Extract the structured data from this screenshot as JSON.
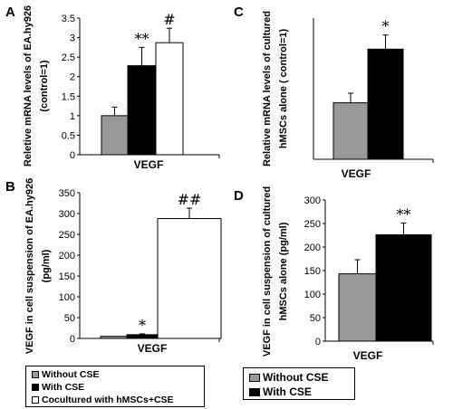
{
  "colors": {
    "without_cse": "#999999",
    "with_cse": "#000000",
    "cocultured": "#ffffff",
    "axis": "#000000"
  },
  "legend_left": {
    "items": [
      {
        "label": "Without CSE",
        "color": "#999999"
      },
      {
        "label": "With CSE",
        "color": "#000000"
      },
      {
        "label": "Cocultured with hMSCs+CSE",
        "color": "#ffffff"
      }
    ]
  },
  "legend_right": {
    "items": [
      {
        "label": "Without CSE",
        "color": "#999999"
      },
      {
        "label": "With CSE",
        "color": "#000000"
      }
    ]
  },
  "chart_data": [
    {
      "panel": "A",
      "type": "bar",
      "categories": [
        "VEGF"
      ],
      "xlabel": "VEGF",
      "ylabel": [
        "Reletive mRNA levels of EA.hy926",
        "(control=1)"
      ],
      "ylim": [
        0,
        3.5
      ],
      "yticks": [
        0,
        0.5,
        1,
        1.5,
        2,
        2.5,
        3,
        3.5
      ],
      "tick_labels": [
        "0",
        "0.5",
        "1",
        "1.5",
        "2",
        "2.5",
        "3",
        "3.5"
      ],
      "series": [
        {
          "name": "Without CSE",
          "values": [
            1.0
          ],
          "error": [
            0.22
          ],
          "annotation": ""
        },
        {
          "name": "With CSE",
          "values": [
            2.28
          ],
          "error": [
            0.47
          ],
          "annotation": "**"
        },
        {
          "name": "Cocultured with hMSCs+CSE",
          "values": [
            2.87
          ],
          "error": [
            0.37
          ],
          "annotation": "#"
        }
      ]
    },
    {
      "panel": "B",
      "type": "bar",
      "categories": [
        "VEGF"
      ],
      "xlabel": "VEGF",
      "ylabel": [
        "VEGF in cell suspension of EA.hy926",
        "(pg/ml)"
      ],
      "ylim": [
        0,
        350
      ],
      "yticks": [
        0,
        50,
        100,
        150,
        200,
        250,
        300,
        350
      ],
      "tick_labels": [
        "0",
        "50",
        "100",
        "150",
        "200",
        "250",
        "300",
        "350"
      ],
      "series": [
        {
          "name": "Without CSE",
          "values": [
            5
          ],
          "error": [
            0
          ],
          "annotation": ""
        },
        {
          "name": "With CSE",
          "values": [
            9
          ],
          "error": [
            2
          ],
          "annotation": "*"
        },
        {
          "name": "Cocultured with hMSCs+CSE",
          "values": [
            288
          ],
          "error": [
            25
          ],
          "annotation": "##"
        }
      ]
    },
    {
      "panel": "C",
      "type": "bar",
      "categories": [
        "VEGF"
      ],
      "xlabel": "VEGF",
      "ylabel": [
        "Relative mRNA levels of cultured",
        "hMSCs alone ( control=1)"
      ],
      "ylim": [
        0,
        2.5
      ],
      "yticks": [],
      "tick_labels": [],
      "series": [
        {
          "name": "Without CSE",
          "values": [
            1.0
          ],
          "error": [
            0.17
          ],
          "annotation": ""
        },
        {
          "name": "With CSE",
          "values": [
            1.95
          ],
          "error": [
            0.25
          ],
          "annotation": "*"
        }
      ]
    },
    {
      "panel": "D",
      "type": "bar",
      "categories": [
        "VEGF"
      ],
      "xlabel": "VEGF",
      "ylabel": [
        "VEGF in cell suspension of cultured",
        "hMSCs alone (pg/ml)"
      ],
      "ylim": [
        0,
        300
      ],
      "yticks": [
        0,
        50,
        100,
        150,
        200,
        250,
        300
      ],
      "tick_labels": [
        "0",
        "50",
        "100",
        "150",
        "200",
        "250",
        "300"
      ],
      "series": [
        {
          "name": "Without CSE",
          "values": [
            143
          ],
          "error": [
            30
          ],
          "annotation": ""
        },
        {
          "name": "With CSE",
          "values": [
            226
          ],
          "error": [
            25
          ],
          "annotation": "**"
        }
      ]
    }
  ]
}
